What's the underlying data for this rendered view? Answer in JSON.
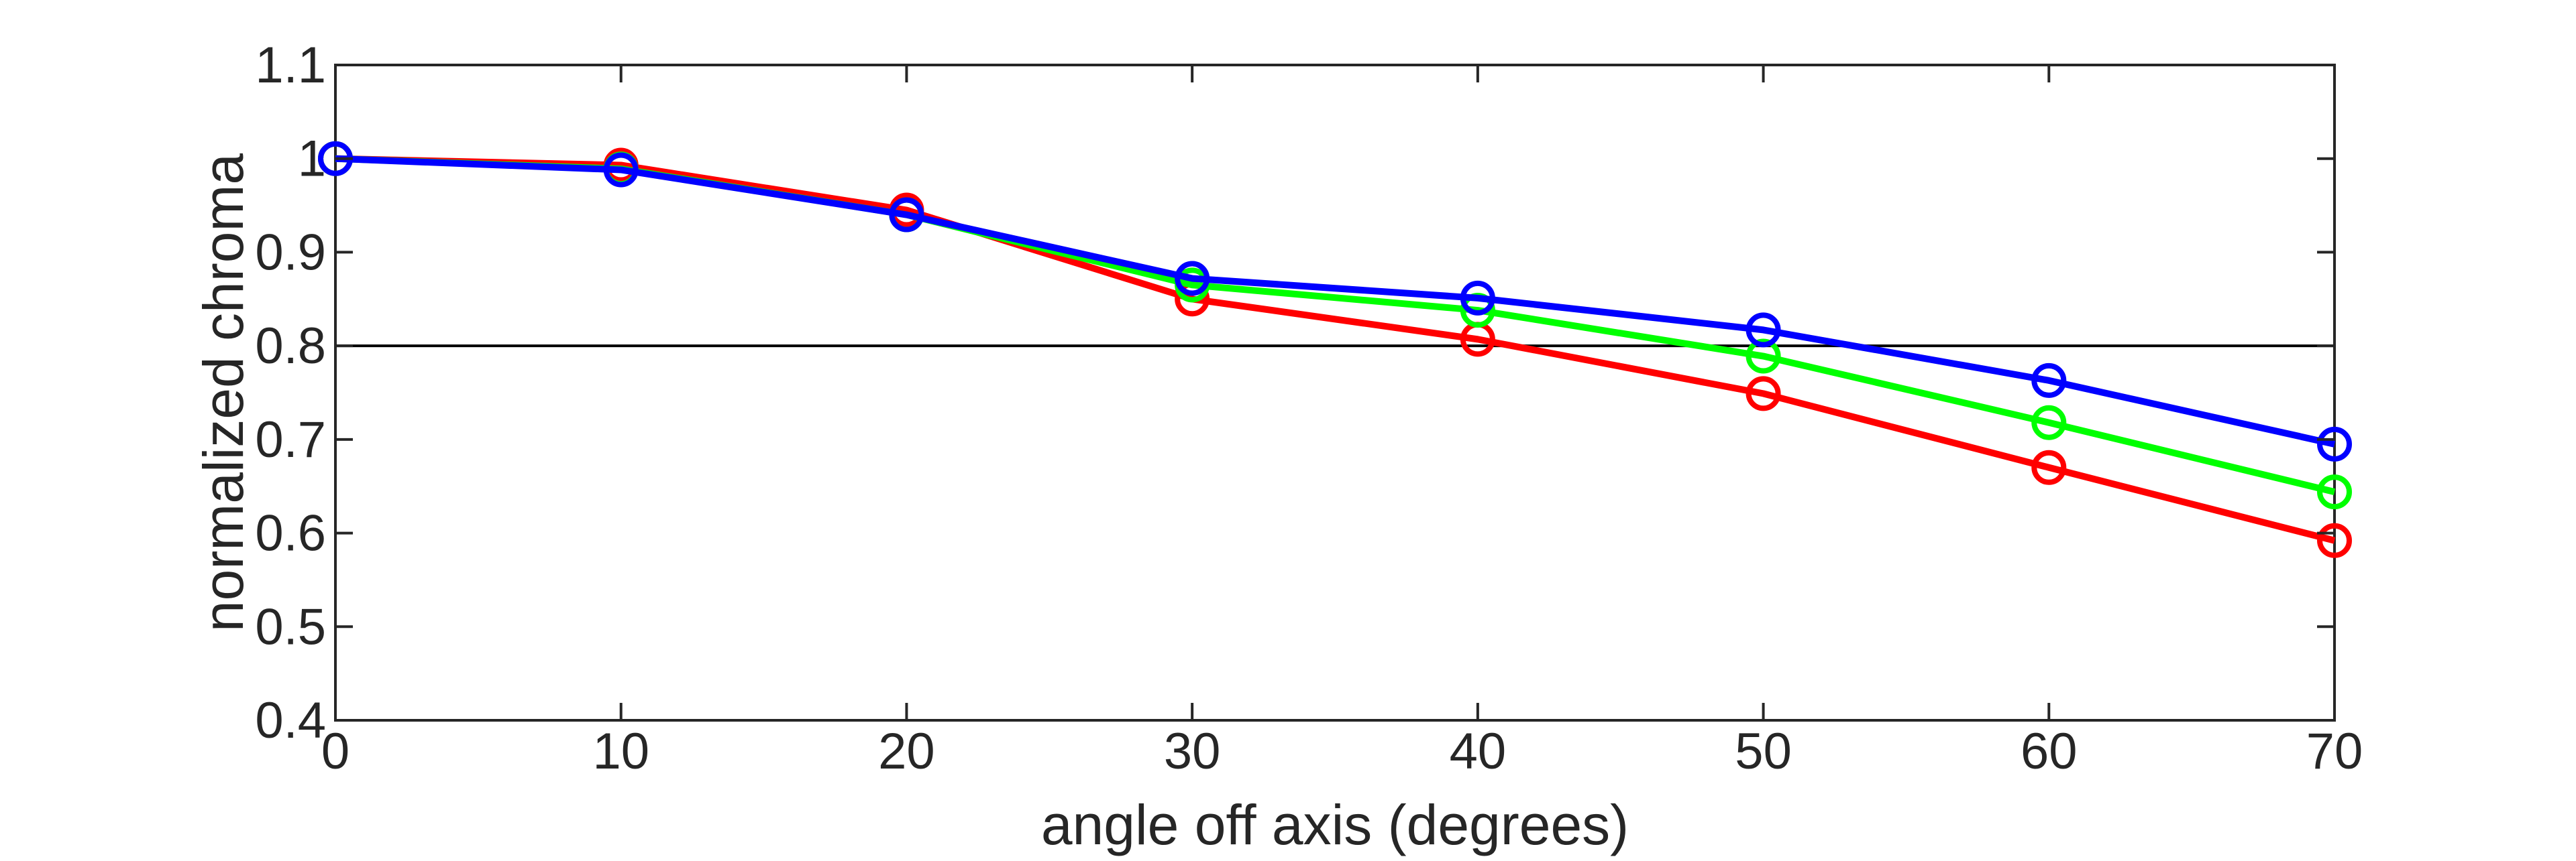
{
  "chart_data": {
    "type": "line",
    "title": "",
    "xlabel": "angle off axis (degrees)",
    "ylabel": "normalized chroma",
    "xlim": [
      0,
      70
    ],
    "ylim": [
      0.4,
      1.1
    ],
    "xticks": [
      0,
      10,
      20,
      30,
      40,
      50,
      60,
      70
    ],
    "xtick_labels": [
      "0",
      "10",
      "20",
      "30",
      "40",
      "50",
      "60",
      "70"
    ],
    "yticks": [
      0.4,
      0.5,
      0.6,
      0.7,
      0.8,
      0.9,
      1.0,
      1.1
    ],
    "ytick_labels": [
      "0.4",
      "0.5",
      "0.6",
      "0.7",
      "0.8",
      "0.9",
      "1",
      "1.1"
    ],
    "grid": false,
    "reference_line": {
      "y": 0.8,
      "color": "#000000"
    },
    "x": [
      0,
      10,
      20,
      30,
      40,
      50,
      60,
      70
    ],
    "series": [
      {
        "color": "#ff0000",
        "values": [
          1.0,
          0.993,
          0.945,
          0.85,
          0.807,
          0.749,
          0.67,
          0.592
        ]
      },
      {
        "color": "#00ff00",
        "values": [
          1.0,
          0.989,
          0.94,
          0.865,
          0.838,
          0.789,
          0.718,
          0.644
        ]
      },
      {
        "color": "#0000ff",
        "values": [
          1.0,
          0.988,
          0.94,
          0.872,
          0.851,
          0.817,
          0.763,
          0.695
        ]
      }
    ]
  }
}
